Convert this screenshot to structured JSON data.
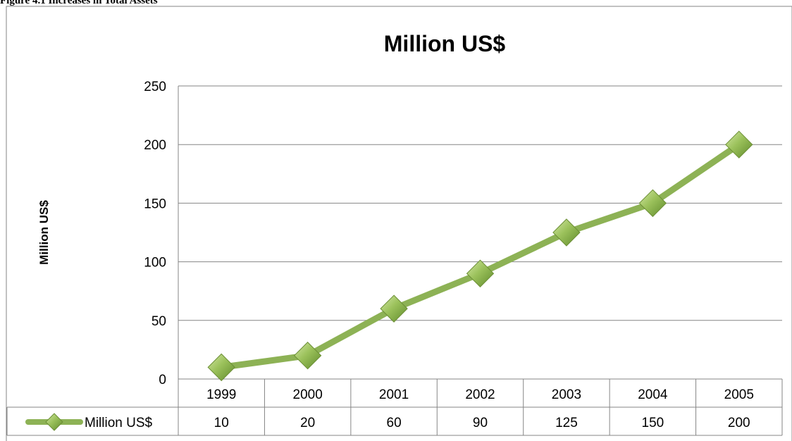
{
  "caption": "Figure 4.1 Increases in Total Assets",
  "chart_data": {
    "type": "line",
    "title": "Million US$",
    "ylabel": "Million US$",
    "xlabel": "",
    "categories": [
      "1999",
      "2000",
      "2001",
      "2002",
      "2003",
      "2004",
      "2005"
    ],
    "series": [
      {
        "name": "Million US$",
        "values": [
          10,
          20,
          60,
          90,
          125,
          150,
          200
        ],
        "color": "#8db255",
        "marker": "diamond",
        "marker_color": "#9bc15b"
      }
    ],
    "ylim": [
      0,
      250
    ],
    "yticks": [
      0,
      50,
      100,
      150,
      200,
      250
    ],
    "grid": true,
    "data_table": true,
    "legend_in_table": true
  }
}
